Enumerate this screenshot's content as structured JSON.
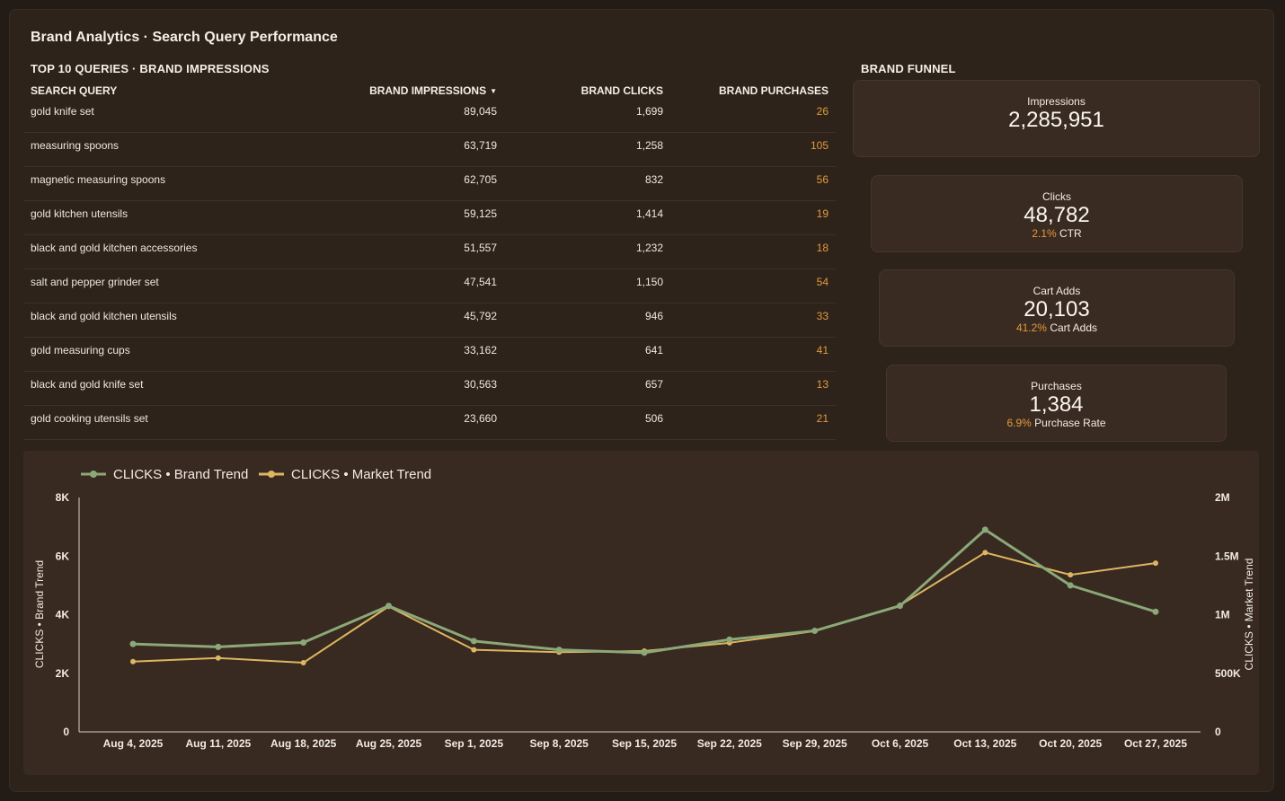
{
  "title": "Brand Analytics · Search Query Performance",
  "table": {
    "title": "TOP 10 QUERIES · BRAND IMPRESSIONS",
    "columns": [
      "SEARCH QUERY",
      "BRAND IMPRESSIONS",
      "BRAND CLICKS",
      "BRAND PURCHASES"
    ],
    "sort_icon": "caret-down-icon",
    "rows": [
      {
        "query": "gold knife set",
        "impressions": "89,045",
        "clicks": "1,699",
        "purchases": "26"
      },
      {
        "query": "measuring spoons",
        "impressions": "63,719",
        "clicks": "1,258",
        "purchases": "105"
      },
      {
        "query": "magnetic measuring spoons",
        "impressions": "62,705",
        "clicks": "832",
        "purchases": "56"
      },
      {
        "query": "gold kitchen utensils",
        "impressions": "59,125",
        "clicks": "1,414",
        "purchases": "19"
      },
      {
        "query": "black and gold kitchen accessories",
        "impressions": "51,557",
        "clicks": "1,232",
        "purchases": "18"
      },
      {
        "query": "salt and pepper grinder set",
        "impressions": "47,541",
        "clicks": "1,150",
        "purchases": "54"
      },
      {
        "query": "black and gold kitchen utensils",
        "impressions": "45,792",
        "clicks": "946",
        "purchases": "33"
      },
      {
        "query": "gold measuring cups",
        "impressions": "33,162",
        "clicks": "641",
        "purchases": "41"
      },
      {
        "query": "black and gold knife set",
        "impressions": "30,563",
        "clicks": "657",
        "purchases": "13"
      },
      {
        "query": "gold cooking utensils set",
        "impressions": "23,660",
        "clicks": "506",
        "purchases": "21"
      }
    ]
  },
  "funnel": {
    "title": "BRAND FUNNEL",
    "stages": [
      {
        "label": "Impressions",
        "value": "2,285,951",
        "rate": "",
        "rate_label": ""
      },
      {
        "label": "Clicks",
        "value": "48,782",
        "rate": "2.1%",
        "rate_label": "CTR"
      },
      {
        "label": "Cart Adds",
        "value": "20,103",
        "rate": "41.2%",
        "rate_label": "Cart Adds"
      },
      {
        "label": "Purchases",
        "value": "1,384",
        "rate": "6.9%",
        "rate_label": "Purchase Rate"
      }
    ]
  },
  "colors": {
    "accent": "#e39a3c",
    "brand_series": "#8ba878",
    "market_series": "#dcb660"
  },
  "chart_data": {
    "type": "line",
    "x": [
      "Aug 4, 2025",
      "Aug 11, 2025",
      "Aug 18, 2025",
      "Aug 25, 2025",
      "Sep 1, 2025",
      "Sep 8, 2025",
      "Sep 15, 2025",
      "Sep 22, 2025",
      "Sep 29, 2025",
      "Oct 6, 2025",
      "Oct 13, 2025",
      "Oct 20, 2025",
      "Oct 27, 2025"
    ],
    "series": [
      {
        "name": "CLICKS • Brand Trend",
        "axis": "left",
        "values": [
          3000,
          2900,
          3050,
          4300,
          3100,
          2800,
          2700,
          3150,
          3450,
          4300,
          6900,
          5000,
          4100
        ]
      },
      {
        "name": "CLICKS • Market Trend",
        "axis": "right",
        "values": [
          600000,
          630000,
          590000,
          1070000,
          700000,
          680000,
          690000,
          760000,
          860000,
          1080000,
          1530000,
          1340000,
          1440000
        ]
      }
    ],
    "ylabel": "CLICKS • Brand Trend",
    "y2label": "CLICKS • Market Trend",
    "ylim": [
      0,
      8000
    ],
    "y2lim": [
      0,
      2000000
    ],
    "yticks": [
      "0",
      "2K",
      "4K",
      "6K",
      "8K"
    ],
    "y2ticks": [
      "0",
      "500K",
      "1M",
      "1.5M",
      "2M"
    ],
    "legend": "top-left",
    "grid": false
  }
}
